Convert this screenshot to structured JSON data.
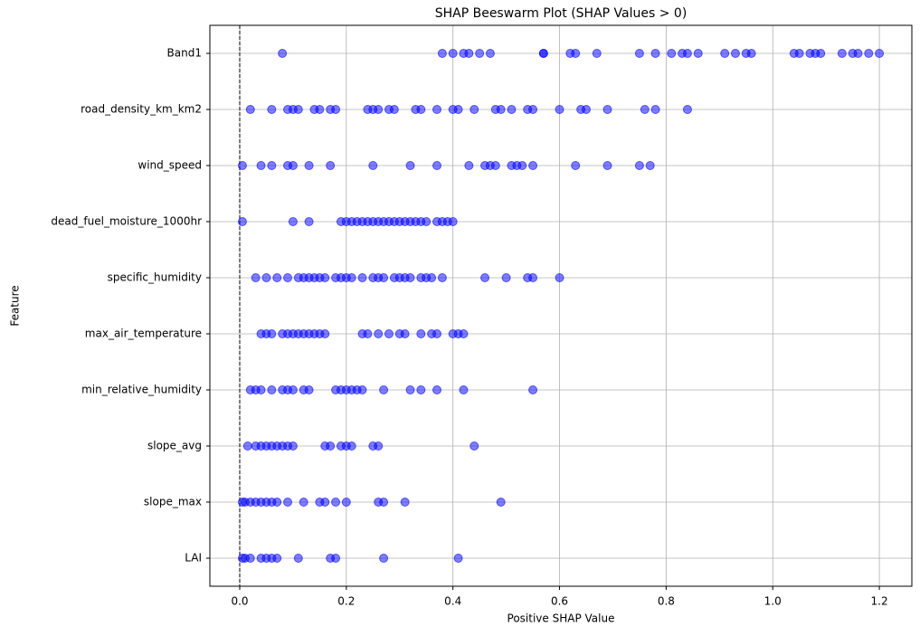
{
  "chart_data": {
    "type": "scatter",
    "title": "SHAP Beeswarm Plot (SHAP Values > 0)",
    "x_label": "Positive SHAP Value",
    "y_label": "Feature",
    "categories": [
      "Band1",
      "road_density_km_km2",
      "wind_speed",
      "dead_fuel_moisture_1000hr",
      "specific_humidity",
      "max_air_temperature",
      "min_relative_humidity",
      "slope_avg",
      "slope_max",
      "LAI"
    ],
    "values": [
      [
        0.08,
        0.38,
        0.4,
        0.42,
        0.43,
        0.45,
        0.47,
        0.57,
        0.57,
        0.62,
        0.63,
        0.67,
        0.75,
        0.78,
        0.81,
        0.83,
        0.84,
        0.86,
        0.91,
        0.93,
        0.95,
        0.96,
        1.04,
        1.05,
        1.07,
        1.08,
        1.09,
        1.13,
        1.15,
        1.16,
        1.18,
        1.2
      ],
      [
        0.02,
        0.06,
        0.09,
        0.1,
        0.11,
        0.14,
        0.15,
        0.17,
        0.18,
        0.24,
        0.25,
        0.26,
        0.28,
        0.29,
        0.33,
        0.34,
        0.37,
        0.4,
        0.41,
        0.44,
        0.48,
        0.49,
        0.51,
        0.54,
        0.55,
        0.6,
        0.64,
        0.65,
        0.69,
        0.76,
        0.78,
        0.84
      ],
      [
        0.005,
        0.04,
        0.06,
        0.09,
        0.1,
        0.13,
        0.17,
        0.25,
        0.32,
        0.37,
        0.43,
        0.46,
        0.47,
        0.48,
        0.51,
        0.52,
        0.53,
        0.55,
        0.63,
        0.69,
        0.75,
        0.77
      ],
      [
        0.005,
        0.1,
        0.13,
        0.19,
        0.2,
        0.21,
        0.22,
        0.23,
        0.24,
        0.25,
        0.26,
        0.27,
        0.28,
        0.29,
        0.3,
        0.31,
        0.32,
        0.33,
        0.34,
        0.35,
        0.37,
        0.38,
        0.39,
        0.4
      ],
      [
        0.03,
        0.05,
        0.07,
        0.09,
        0.11,
        0.12,
        0.13,
        0.14,
        0.15,
        0.16,
        0.18,
        0.19,
        0.2,
        0.21,
        0.23,
        0.25,
        0.26,
        0.27,
        0.29,
        0.3,
        0.31,
        0.32,
        0.34,
        0.35,
        0.36,
        0.38,
        0.46,
        0.5,
        0.54,
        0.55,
        0.6
      ],
      [
        0.04,
        0.05,
        0.06,
        0.08,
        0.09,
        0.1,
        0.11,
        0.12,
        0.13,
        0.14,
        0.15,
        0.16,
        0.23,
        0.24,
        0.26,
        0.28,
        0.3,
        0.31,
        0.34,
        0.36,
        0.37,
        0.4,
        0.41,
        0.42
      ],
      [
        0.02,
        0.03,
        0.04,
        0.06,
        0.08,
        0.09,
        0.1,
        0.12,
        0.13,
        0.18,
        0.19,
        0.2,
        0.21,
        0.22,
        0.23,
        0.27,
        0.32,
        0.34,
        0.37,
        0.42,
        0.55
      ],
      [
        0.015,
        0.03,
        0.04,
        0.05,
        0.06,
        0.07,
        0.08,
        0.09,
        0.1,
        0.16,
        0.17,
        0.19,
        0.2,
        0.21,
        0.25,
        0.26,
        0.44
      ],
      [
        0.005,
        0.01,
        0.02,
        0.03,
        0.04,
        0.05,
        0.06,
        0.07,
        0.09,
        0.12,
        0.15,
        0.16,
        0.18,
        0.2,
        0.26,
        0.27,
        0.31,
        0.49
      ],
      [
        0.005,
        0.01,
        0.02,
        0.04,
        0.05,
        0.06,
        0.07,
        0.11,
        0.17,
        0.18,
        0.27,
        0.41
      ]
    ],
    "color": "blue",
    "reference_line": 0,
    "xlim": [
      -0.056,
      1.261
    ],
    "xticks": [
      {
        "value": 0,
        "label": "0.0"
      },
      0.2,
      0.4,
      0.6,
      0.8,
      {
        "value": 1,
        "label": "1.0"
      },
      1.2
    ],
    "grid": true
  }
}
